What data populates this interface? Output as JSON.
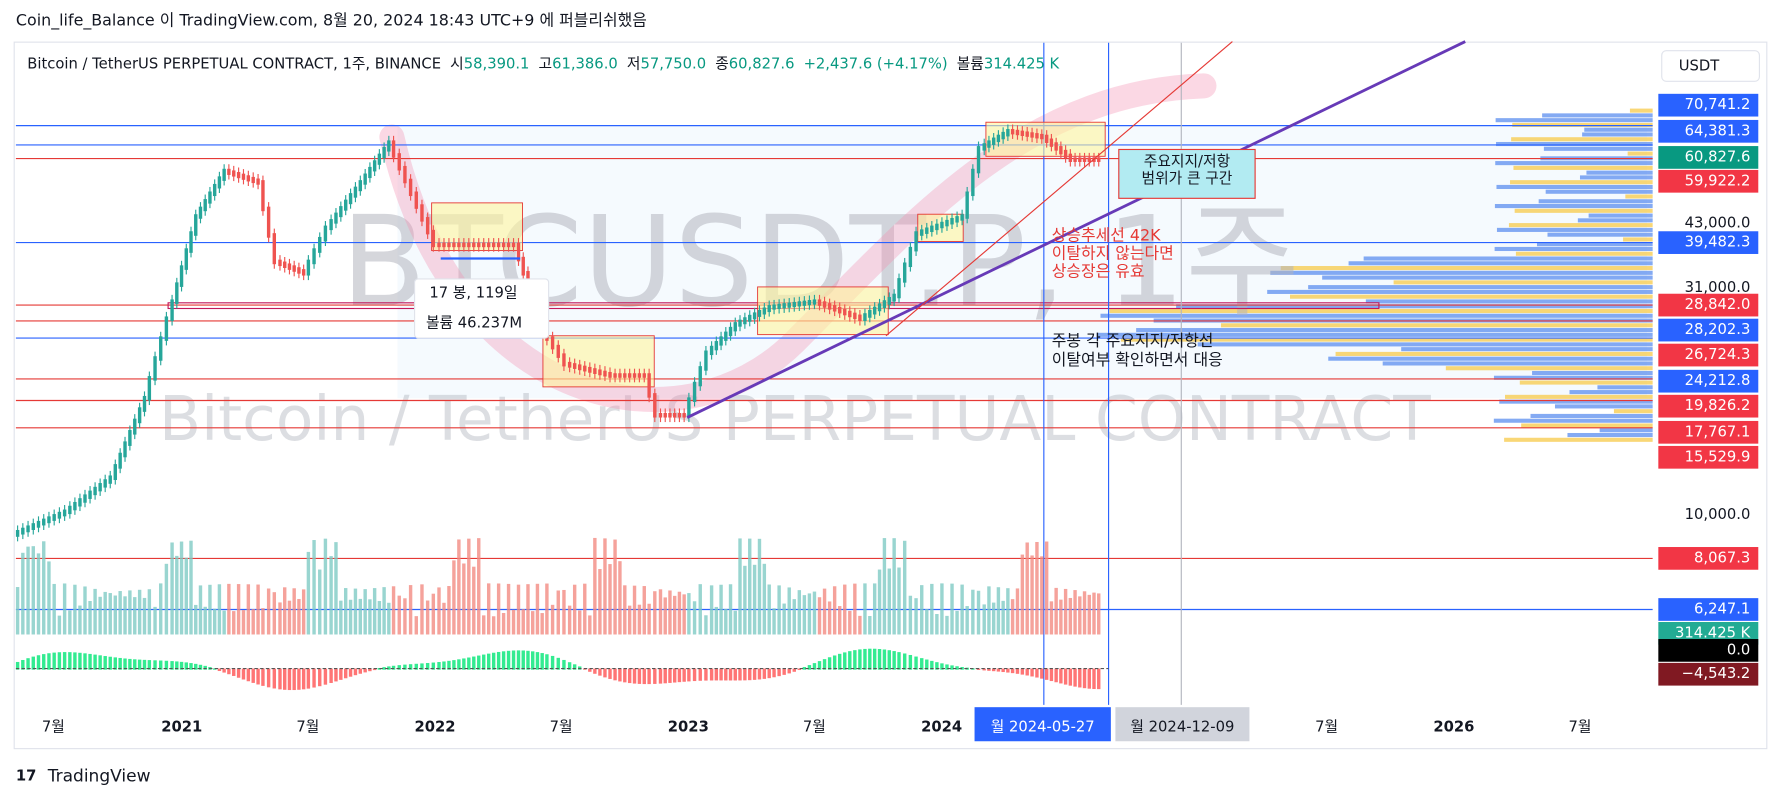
{
  "header": {
    "publisher_line": "Coin_life_Balance 이 TradingView.com, 8월 20, 2024 18:43 UTC+9 에 퍼블리쉬했음",
    "symbol_line": "Bitcoin / TetherUS PERPETUAL CONTRACT, 1주, BINANCE",
    "ohlc": [
      {
        "label": "시",
        "value": "58,390.1"
      },
      {
        "label": "고",
        "value": "61,386.0"
      },
      {
        "label": "저",
        "value": "57,750.0"
      },
      {
        "label": "종",
        "value": "60,827.6"
      }
    ],
    "change": "+2,437.6 (+4.17%)",
    "volume_label": "볼륨",
    "volume": "314.425 K",
    "currency_button": "USDT"
  },
  "price_axis": [
    {
      "text": "70,741.2",
      "style": "blue"
    },
    {
      "text": "64,381.3",
      "style": "blue"
    },
    {
      "text": "60,827.6",
      "style": "green"
    },
    {
      "text": "59,922.2",
      "style": "red"
    },
    {
      "text": "43,000.0",
      "style": "plain"
    },
    {
      "text": "39,482.3",
      "style": "blue"
    },
    {
      "text": "31,000.0",
      "style": "plain"
    },
    {
      "text": "28,842.0",
      "style": "red"
    },
    {
      "text": "28,202.3",
      "style": "blue"
    },
    {
      "text": "26,724.3",
      "style": "red"
    },
    {
      "text": "24,212.8",
      "style": "blue"
    },
    {
      "text": "19,826.2",
      "style": "red"
    },
    {
      "text": "17,767.1",
      "style": "red"
    },
    {
      "text": "15,529.9",
      "style": "red"
    },
    {
      "text": "10,000.0",
      "style": "plain"
    },
    {
      "text": "8,067.3",
      "style": "red"
    },
    {
      "text": "6,247.1",
      "style": "blue"
    },
    {
      "text": "314.425 K",
      "style": "teal"
    },
    {
      "text": "0.0",
      "style": "black"
    },
    {
      "text": "−4,543.2",
      "style": "darkred"
    }
  ],
  "time_axis": [
    {
      "text": "7월",
      "style": "plain"
    },
    {
      "text": "2021",
      "style": "bold"
    },
    {
      "text": "7월",
      "style": "plain"
    },
    {
      "text": "2022",
      "style": "bold"
    },
    {
      "text": "7월",
      "style": "plain"
    },
    {
      "text": "2023",
      "style": "bold"
    },
    {
      "text": "7월",
      "style": "plain"
    },
    {
      "text": "2024",
      "style": "bold"
    },
    {
      "text": "월 2024-05-27",
      "style": "selected"
    },
    {
      "text": "월 2024-12-09",
      "style": "hover"
    },
    {
      "text": "7월",
      "style": "plain"
    },
    {
      "text": "2026",
      "style": "bold"
    },
    {
      "text": "7월",
      "style": "plain"
    }
  ],
  "watermark": {
    "symbol": "BTCUSDT.P, 1주",
    "description": "Bitcoin / TetherUS PERPETUAL CONTRACT"
  },
  "annotations": {
    "range_bars": "17 봉, 119일",
    "range_volume": "볼륨 46.237M",
    "box_note": [
      "주요지지/저항",
      "범위가 큰 구간"
    ],
    "trend_note": [
      "상승추세선 42K",
      "이탈하지 않는다면",
      "상승장은 유효"
    ],
    "strategy_note": [
      "주봉 각 주요지지/저항선",
      "이탈여부 확인하면서 대응"
    ]
  },
  "footer": "TradingView"
}
